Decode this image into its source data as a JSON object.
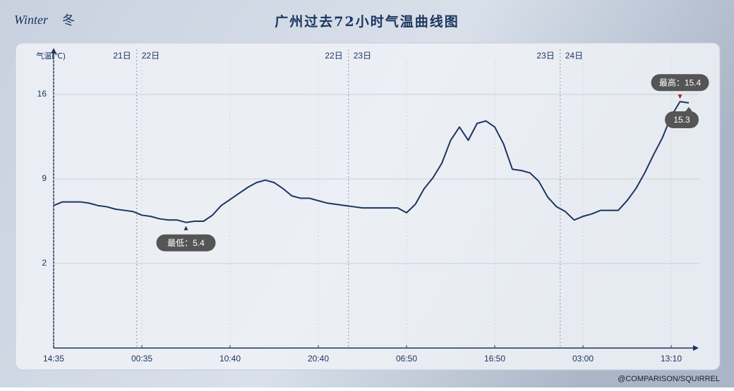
{
  "logo": {
    "text": "Winter",
    "season": "冬"
  },
  "footer": "@COMPARISON/SQUIRREL",
  "chart_data": {
    "type": "line",
    "title": "广州过去72小时气温曲线图",
    "y_label": "气温(℃)",
    "categories": [
      "14:35",
      null,
      null,
      null,
      null,
      null,
      null,
      null,
      null,
      null,
      "00:35",
      null,
      null,
      null,
      null,
      null,
      null,
      null,
      null,
      null,
      "10:40",
      null,
      null,
      null,
      null,
      null,
      null,
      null,
      null,
      null,
      "20:40",
      null,
      null,
      null,
      null,
      null,
      null,
      null,
      null,
      null,
      "06:50",
      null,
      null,
      null,
      null,
      null,
      null,
      null,
      null,
      null,
      "16:50",
      null,
      null,
      null,
      null,
      null,
      null,
      null,
      null,
      null,
      "03:00",
      null,
      null,
      null,
      null,
      null,
      null,
      null,
      null,
      null,
      "13:10",
      null,
      null
    ],
    "values": [
      6.8,
      7.1,
      7.1,
      7.1,
      7.0,
      6.8,
      6.7,
      6.5,
      6.4,
      6.3,
      6.0,
      5.9,
      5.7,
      5.6,
      5.6,
      5.4,
      5.5,
      5.5,
      6.0,
      6.8,
      7.3,
      7.8,
      8.3,
      8.7,
      8.9,
      8.7,
      8.2,
      7.6,
      7.4,
      7.4,
      7.2,
      7.0,
      6.9,
      6.8,
      6.7,
      6.6,
      6.6,
      6.6,
      6.6,
      6.6,
      6.2,
      6.9,
      8.2,
      9.1,
      10.3,
      12.2,
      13.3,
      12.2,
      13.6,
      13.8,
      13.3,
      11.9,
      9.8,
      9.7,
      9.5,
      8.8,
      7.5,
      6.7,
      6.3,
      5.6,
      5.9,
      6.1,
      6.4,
      6.4,
      6.4,
      7.2,
      8.2,
      9.5,
      11.0,
      12.4,
      14.2,
      15.4,
      15.3
    ],
    "color": "#1c3560",
    "ylim": [
      -5,
      19.5
    ],
    "yticks": [
      2,
      9,
      16
    ],
    "grid": true,
    "day_dividers": [
      {
        "at": 9.42,
        "before": "21日",
        "after": "22日"
      },
      {
        "at": 33.42,
        "before": "22日",
        "after": "23日"
      },
      {
        "at": 57.42,
        "before": "23日",
        "after": "24日"
      }
    ],
    "min": {
      "value": 5.4,
      "label": "最低：5.4"
    },
    "max": {
      "value": 15.4,
      "label": "最高：15.4"
    },
    "last": 15.3
  }
}
